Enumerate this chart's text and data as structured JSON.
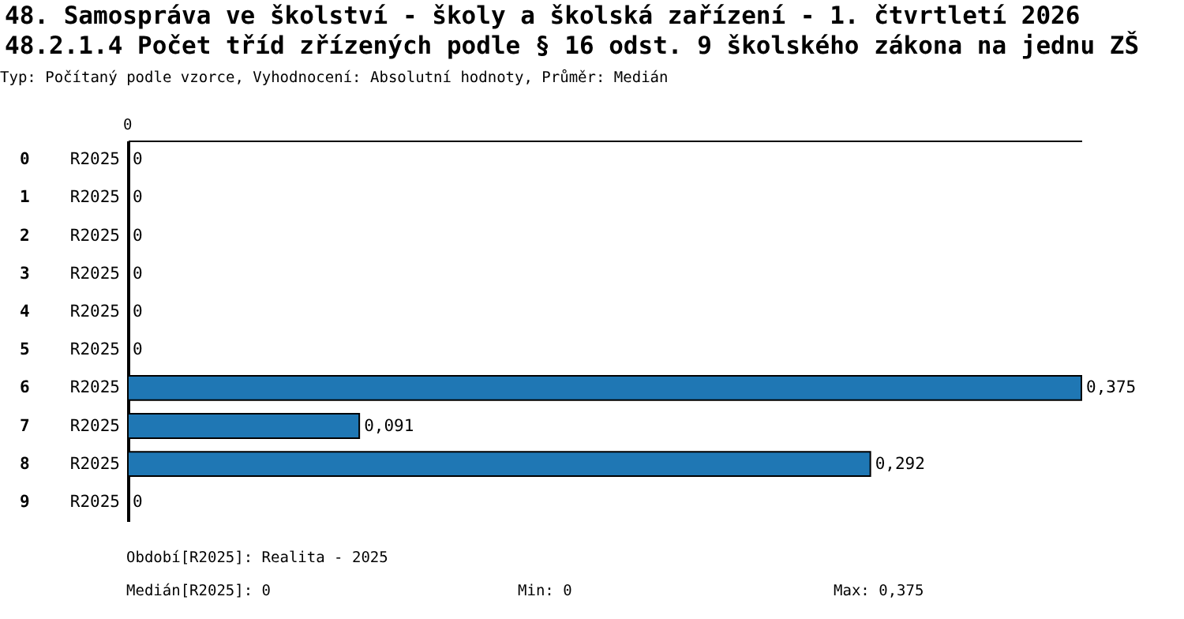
{
  "chart_data": {
    "type": "bar",
    "orientation": "horizontal",
    "title": "48. Samospráva ve školství - školy a školská zařízení - 1. čtvrtletí 2026",
    "subtitle": "48.2.1.4 Počet tříd zřízených podle § 16 odst. 9 školského zákona na jednu ZŠ",
    "categories": [
      "0",
      "1",
      "2",
      "3",
      "4",
      "5",
      "6",
      "7",
      "8",
      "9"
    ],
    "series": [
      {
        "name": "R2025",
        "color": "#1f77b4",
        "values": [
          0,
          0,
          0,
          0,
          0,
          0,
          0.375,
          0.091,
          0.292,
          0
        ],
        "value_labels": [
          "0",
          "0",
          "0",
          "0",
          "0",
          "0",
          "0,375",
          "0,091",
          "0,292",
          "0"
        ]
      }
    ],
    "annotations": [
      "0",
      "Typ: Počítaný podle vzorce, Vyhodnocení: Absolutní hodnoty, Průměr: Medián",
      "Období[R2025]: Realita - 2025",
      "Medián[R2025]: 0",
      "Min: 0",
      "Max: 0,375"
    ]
  }
}
